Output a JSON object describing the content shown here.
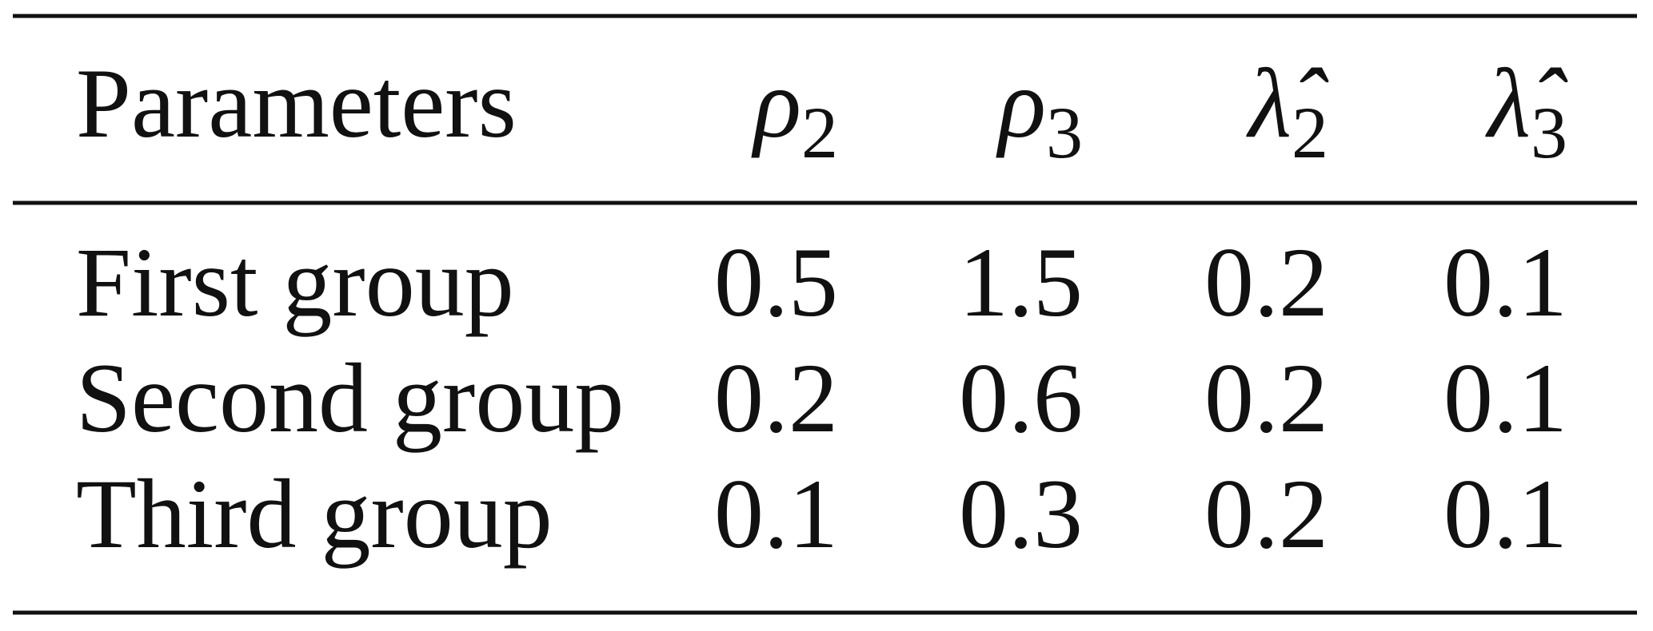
{
  "table": {
    "header": [
      "Parameters",
      {
        "symbol": "ρ",
        "sub": "2"
      },
      {
        "symbol": "ρ",
        "sub": "3"
      },
      {
        "symbol": "λ̂",
        "sub": "2"
      },
      {
        "symbol": "λ̂",
        "sub": "3"
      }
    ],
    "rows": [
      [
        "First group",
        "0.5",
        "1.5",
        "0.2",
        "0.1"
      ],
      [
        "Second group",
        "0.2",
        "0.6",
        "0.2",
        "0.1"
      ],
      [
        "Third group",
        "0.1",
        "0.3",
        "0.2",
        "0.1"
      ]
    ]
  }
}
